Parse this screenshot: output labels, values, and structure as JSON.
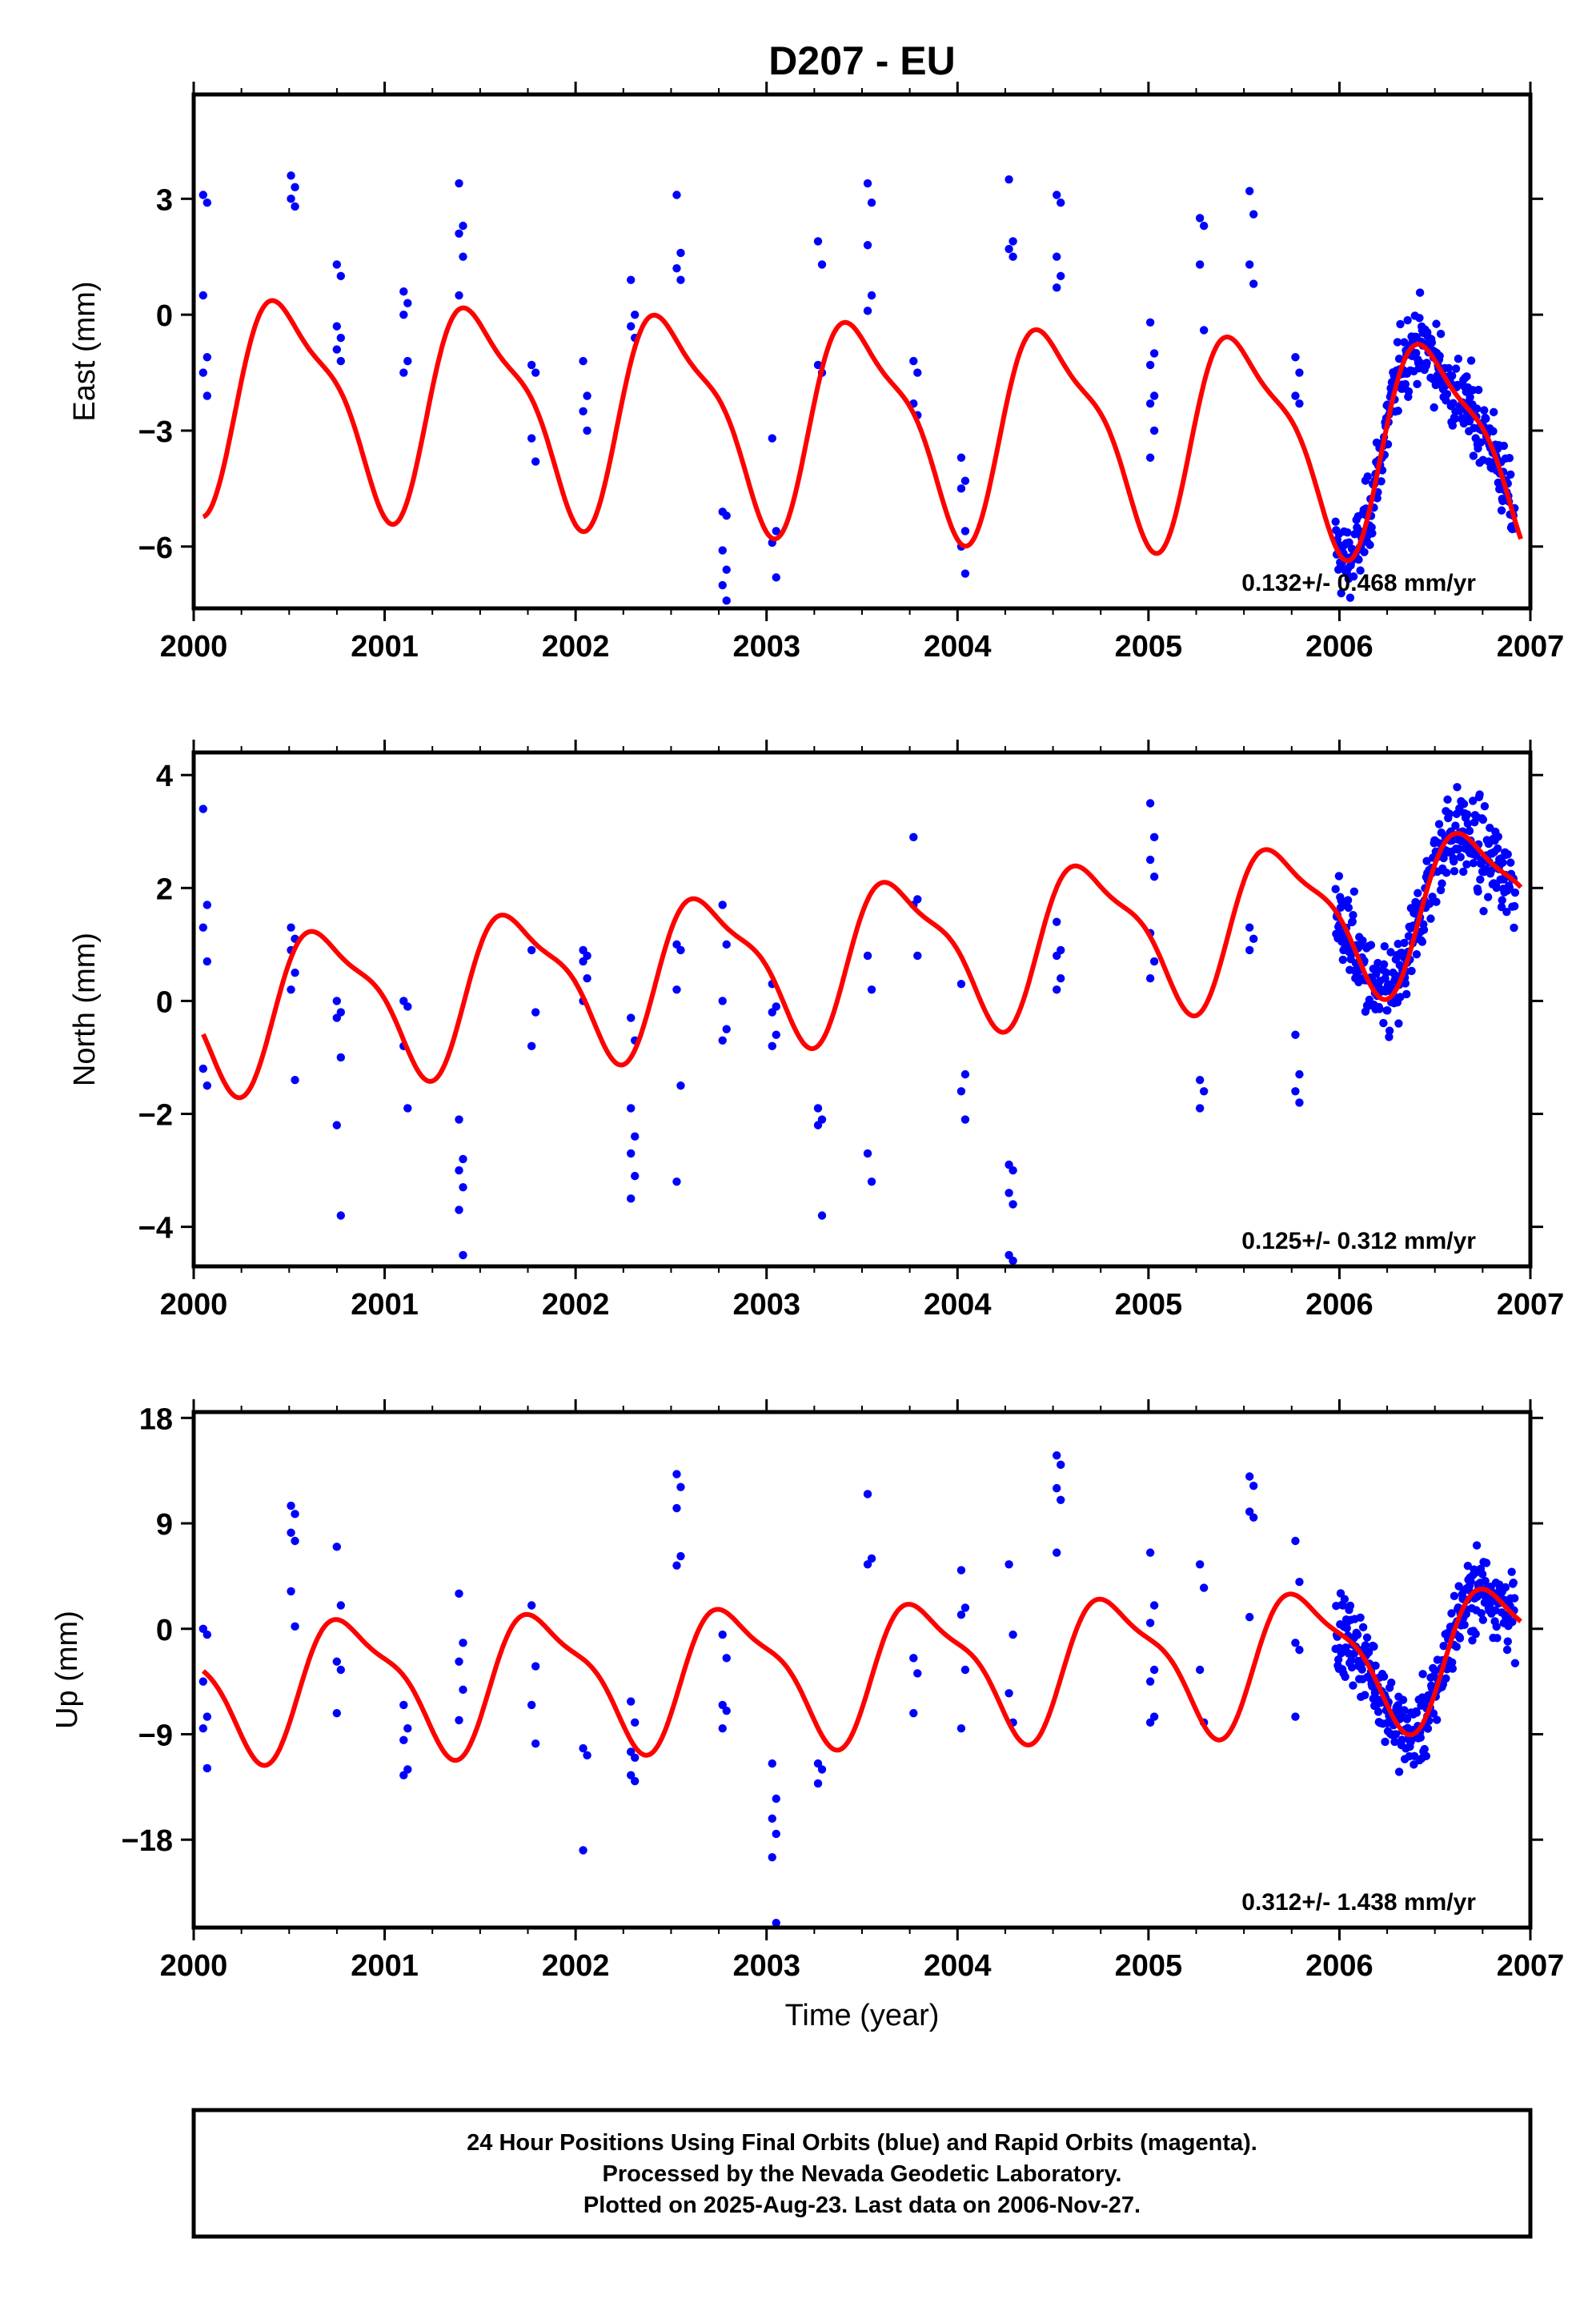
{
  "figure": {
    "title": "D207 - EU",
    "xlabel": "Time (year)",
    "caption_lines": [
      "24 Hour Positions Using Final Orbits (blue) and Rapid Orbits (magenta).",
      "Processed by the Nevada Geodetic Laboratory.",
      "Plotted on 2025-Aug-23. Last data on 2006-Nov-27."
    ]
  },
  "colors": {
    "points": "#0000ff",
    "fit": "#ff0000",
    "frame": "#000000"
  },
  "chart_data": [
    {
      "type": "scatter",
      "ylabel": "East (mm)",
      "rate_text": "0.132+/- 0.468 mm/yr",
      "xlim": [
        2000,
        2007
      ],
      "ylim": [
        -7.6,
        5.7
      ],
      "yticks": [
        -6,
        -3,
        0,
        3
      ],
      "xticks": [
        2000,
        2001,
        2002,
        2003,
        2004,
        2005,
        2006,
        2007
      ],
      "fit_line": {
        "amplitude": 3.0,
        "phase": 0.25,
        "trend": [
          [
            2000.05,
            -2.1
          ],
          [
            2006.95,
            -3.4
          ]
        ]
      },
      "sparse_clusters": [
        [
          2000.06,
          [
            3.1,
            2.9,
            0.5,
            -1.1,
            -1.5,
            -2.1
          ]
        ],
        [
          2000.52,
          [
            3.6,
            3.3,
            3.0,
            2.8
          ]
        ],
        [
          2000.76,
          [
            1.3,
            1.0,
            -0.3,
            -0.6,
            -0.9,
            -1.2
          ]
        ],
        [
          2001.11,
          [
            0.6,
            0.3,
            0.0,
            -1.2,
            -1.5
          ]
        ],
        [
          2001.4,
          [
            3.4,
            2.3,
            2.1,
            1.5,
            0.5
          ]
        ],
        [
          2001.78,
          [
            -1.3,
            -1.5,
            -3.2,
            -3.8
          ]
        ],
        [
          2002.05,
          [
            -1.2,
            -2.1,
            -2.5,
            -3.0
          ]
        ],
        [
          2002.3,
          [
            0.9,
            0.0,
            -0.3,
            -0.6
          ]
        ],
        [
          2002.54,
          [
            3.1,
            1.6,
            1.2,
            0.9
          ]
        ],
        [
          2002.78,
          [
            -5.1,
            -5.2,
            -6.1,
            -6.6,
            -7.0,
            -7.4
          ]
        ],
        [
          2003.04,
          [
            -3.2,
            -5.6,
            -5.9,
            -6.8
          ]
        ],
        [
          2003.28,
          [
            1.9,
            1.3,
            -1.3,
            -1.5
          ]
        ],
        [
          2003.54,
          [
            3.4,
            2.9,
            1.8,
            0.5,
            0.1
          ]
        ],
        [
          2003.78,
          [
            -1.2,
            -1.5,
            -2.3,
            -2.6
          ]
        ],
        [
          2004.03,
          [
            -3.7,
            -4.3,
            -4.5,
            -5.6,
            -6.0,
            -6.7
          ]
        ],
        [
          2004.28,
          [
            3.5,
            1.9,
            1.7,
            1.5
          ]
        ],
        [
          2004.53,
          [
            3.1,
            2.9,
            1.5,
            1.0,
            0.7
          ]
        ],
        [
          2005.02,
          [
            -0.2,
            -1.0,
            -1.3,
            -2.1,
            -2.3,
            -3.0,
            -3.7
          ]
        ],
        [
          2005.28,
          [
            2.5,
            2.3,
            1.3,
            -0.4
          ]
        ],
        [
          2005.54,
          [
            3.2,
            2.6,
            1.3,
            0.8
          ]
        ],
        [
          2005.78,
          [
            -1.1,
            -1.5,
            -2.1,
            -2.3
          ]
        ]
      ],
      "dense_span": [
        2005.98,
        2006.92
      ],
      "dense_noise": 1.25
    },
    {
      "type": "scatter",
      "ylabel": "North (mm)",
      "rate_text": "0.125+/- 0.312 mm/yr",
      "xlim": [
        2000,
        2007
      ],
      "ylim": [
        -4.7,
        4.4
      ],
      "yticks": [
        -4,
        -2,
        0,
        2,
        4
      ],
      "xticks": [
        2000,
        2001,
        2002,
        2003,
        2004,
        2005,
        2006,
        2007
      ],
      "fit_line": {
        "amplitude": 1.5,
        "phase": 0.45,
        "trend": [
          [
            2000.05,
            -0.2
          ],
          [
            2006.95,
            1.8
          ]
        ]
      },
      "sparse_clusters": [
        [
          2000.06,
          [
            3.4,
            1.7,
            1.3,
            0.7,
            -1.2,
            -1.5
          ]
        ],
        [
          2000.52,
          [
            1.3,
            1.1,
            0.9,
            0.5,
            0.2,
            -1.4
          ]
        ],
        [
          2000.76,
          [
            0.0,
            -0.2,
            -0.3,
            -1.0,
            -2.2,
            -3.8
          ]
        ],
        [
          2001.11,
          [
            0.0,
            -0.1,
            -0.8,
            -1.9
          ]
        ],
        [
          2001.4,
          [
            -2.1,
            -2.8,
            -3.0,
            -3.3,
            -3.7,
            -4.5
          ]
        ],
        [
          2001.78,
          [
            0.9,
            -0.2,
            -0.8
          ]
        ],
        [
          2002.05,
          [
            0.9,
            0.8,
            0.7,
            0.4,
            0.0
          ]
        ],
        [
          2002.3,
          [
            -0.3,
            -0.7,
            -1.9,
            -2.4,
            -2.7,
            -3.1,
            -3.5
          ]
        ],
        [
          2002.54,
          [
            1.0,
            0.9,
            0.2,
            -1.5,
            -3.2
          ]
        ],
        [
          2002.78,
          [
            1.7,
            1.0,
            0.0,
            -0.5,
            -0.7
          ]
        ],
        [
          2003.04,
          [
            0.3,
            -0.1,
            -0.2,
            -0.6,
            -0.8
          ]
        ],
        [
          2003.28,
          [
            -1.9,
            -2.1,
            -2.2,
            -3.8
          ]
        ],
        [
          2003.54,
          [
            0.8,
            0.2,
            -2.7,
            -3.2
          ]
        ],
        [
          2003.78,
          [
            2.9,
            1.8,
            1.7,
            0.8
          ]
        ],
        [
          2004.03,
          [
            0.3,
            -1.3,
            -1.6,
            -2.1
          ]
        ],
        [
          2004.28,
          [
            -2.9,
            -3.0,
            -3.4,
            -3.6,
            -4.5,
            -4.6
          ]
        ],
        [
          2004.53,
          [
            1.4,
            0.9,
            0.8,
            0.4,
            0.2
          ]
        ],
        [
          2005.02,
          [
            3.5,
            2.9,
            2.5,
            2.2,
            1.2,
            0.7,
            0.4
          ]
        ],
        [
          2005.28,
          [
            -1.4,
            -1.6,
            -1.9
          ]
        ],
        [
          2005.54,
          [
            1.3,
            1.1,
            0.9
          ]
        ],
        [
          2005.78,
          [
            -0.6,
            -1.3,
            -1.6,
            -1.8
          ]
        ]
      ],
      "dense_span": [
        2005.98,
        2006.92
      ],
      "dense_noise": 1.0
    },
    {
      "type": "scatter",
      "ylabel": "Up (mm)",
      "rate_text": "0.312+/- 1.438 mm/yr",
      "xlim": [
        2000,
        2007
      ],
      "ylim": [
        -25.5,
        18.5
      ],
      "yticks": [
        -18,
        -9,
        0,
        9,
        18
      ],
      "xticks": [
        2000,
        2001,
        2002,
        2003,
        2004,
        2005,
        2006,
        2007
      ],
      "fit_line": {
        "amplitude": 6.5,
        "phase": 0.58,
        "trend": [
          [
            2000.05,
            -5.0
          ],
          [
            2006.95,
            -2.0
          ]
        ]
      },
      "sparse_clusters": [
        [
          2000.06,
          [
            0.0,
            -0.5,
            -4.5,
            -7.5,
            -8.5,
            -11.9
          ]
        ],
        [
          2000.52,
          [
            10.5,
            9.8,
            8.2,
            7.5,
            3.2,
            0.2
          ]
        ],
        [
          2000.76,
          [
            7.0,
            2.0,
            -2.8,
            -3.5,
            -7.2
          ]
        ],
        [
          2001.11,
          [
            -6.5,
            -8.5,
            -9.5,
            -12.0,
            -12.5
          ]
        ],
        [
          2001.4,
          [
            3.0,
            -1.2,
            -2.8,
            -5.2,
            -7.8
          ]
        ],
        [
          2001.78,
          [
            2.0,
            -3.2,
            -6.5,
            -9.8
          ]
        ],
        [
          2002.05,
          [
            -10.2,
            -10.8,
            -18.9
          ]
        ],
        [
          2002.3,
          [
            -6.2,
            -8.0,
            -10.5,
            -11.0,
            -12.5,
            -13.0
          ]
        ],
        [
          2002.54,
          [
            13.2,
            12.1,
            10.3,
            6.2,
            5.4
          ]
        ],
        [
          2002.78,
          [
            -0.5,
            -2.5,
            -6.5,
            -7.0,
            -8.5
          ]
        ],
        [
          2003.04,
          [
            -11.5,
            -14.5,
            -16.2,
            -17.5,
            -19.5,
            -25.1
          ]
        ],
        [
          2003.28,
          [
            -11.5,
            -12.0,
            -13.2
          ]
        ],
        [
          2003.54,
          [
            11.5,
            6.0,
            5.5
          ]
        ],
        [
          2003.78,
          [
            -2.5,
            -3.8,
            -7.2
          ]
        ],
        [
          2004.03,
          [
            5.0,
            1.8,
            1.2,
            -3.5,
            -8.5
          ]
        ],
        [
          2004.28,
          [
            5.5,
            -0.5,
            -5.5,
            -8.0
          ]
        ],
        [
          2004.53,
          [
            14.8,
            14.0,
            12.0,
            11.0,
            6.5
          ]
        ],
        [
          2005.02,
          [
            6.5,
            2.0,
            0.5,
            -3.5,
            -4.5,
            -7.5,
            -8.0
          ]
        ],
        [
          2005.28,
          [
            5.5,
            3.5,
            -3.5,
            -8.0
          ]
        ],
        [
          2005.54,
          [
            13.0,
            12.2,
            10.0,
            9.5,
            1.0
          ]
        ],
        [
          2005.78,
          [
            7.5,
            4.0,
            -1.2,
            -1.8,
            -7.5
          ]
        ]
      ],
      "dense_span": [
        2005.98,
        2006.92
      ],
      "dense_noise": 4.2
    }
  ]
}
